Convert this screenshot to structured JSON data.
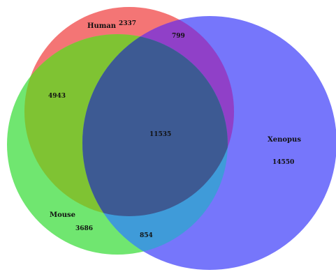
{
  "sets": [
    {
      "name": "Human",
      "color": "#f47575"
    },
    {
      "name": "Mouse",
      "color": "#70e670"
    },
    {
      "name": "Xenopus",
      "color": "#7676fb"
    }
  ],
  "regions": {
    "human_only": "2337",
    "human_xenopus": "799",
    "human_mouse": "4943",
    "all_three": "11535",
    "xenopus_only": "14550",
    "mouse_only": "3686",
    "mouse_xenopus": "854"
  },
  "colors": {
    "human_mouse": "#7fc333",
    "human_xenopus": "#9040c8",
    "mouse_xenopus": "#3f9bd9",
    "all_three": "#3d5a93"
  }
}
